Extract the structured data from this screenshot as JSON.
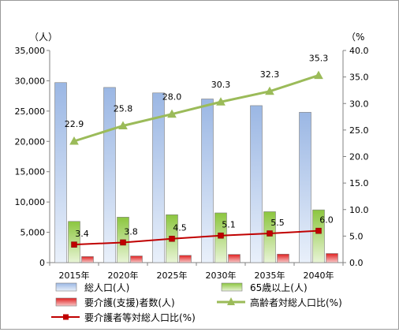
{
  "chart_data": {
    "type": "bar",
    "categories": [
      "2015年",
      "2020年",
      "2025年",
      "2030年",
      "2035年",
      "2040年"
    ],
    "y_left": {
      "unit_label": "（人）",
      "ylim": [
        0,
        35000
      ],
      "ticks": [
        "0",
        "5,000",
        "10,000",
        "15,000",
        "20,000",
        "25,000",
        "30,000",
        "35,000"
      ]
    },
    "y_right": {
      "unit_label": "（%",
      "ylim": [
        0,
        40
      ],
      "ticks": [
        "0.0",
        "5.0",
        "10.0",
        "15.0",
        "20.0",
        "25.0",
        "30.0",
        "35.0",
        "40.0"
      ]
    },
    "series": [
      {
        "name": "総人口(人)",
        "kind": "bar",
        "axis": "left",
        "color": "#a9c3e8",
        "values": [
          29700,
          28900,
          28000,
          27000,
          25900,
          24800
        ]
      },
      {
        "name": "65歳以上(人)",
        "kind": "bar",
        "axis": "left",
        "color": "#9ccc65",
        "values": [
          6800,
          7500,
          7900,
          8200,
          8400,
          8700
        ]
      },
      {
        "name": "要介護(支援)者数(人)",
        "kind": "bar",
        "axis": "left",
        "color": "#e53935",
        "values": [
          1000,
          1100,
          1200,
          1350,
          1400,
          1500
        ]
      },
      {
        "name": "高齢者対総人口比(%)",
        "kind": "line",
        "axis": "right",
        "marker": "triangle",
        "color": "#9bbb59",
        "values": [
          22.9,
          25.8,
          28.0,
          30.3,
          32.3,
          35.3
        ],
        "labels": [
          "22.9",
          "25.8",
          "28.0",
          "30.3",
          "32.3",
          "35.3"
        ]
      },
      {
        "name": "要介護者等対総人口比(%)",
        "kind": "line",
        "axis": "right",
        "marker": "square",
        "color": "#c00000",
        "values": [
          3.4,
          3.8,
          4.5,
          5.1,
          5.5,
          6.0
        ],
        "labels": [
          "3.4",
          "3.8",
          "4.5",
          "5.1",
          "5.5",
          "6.0"
        ]
      }
    ],
    "grid": false,
    "legend": "bottom"
  }
}
